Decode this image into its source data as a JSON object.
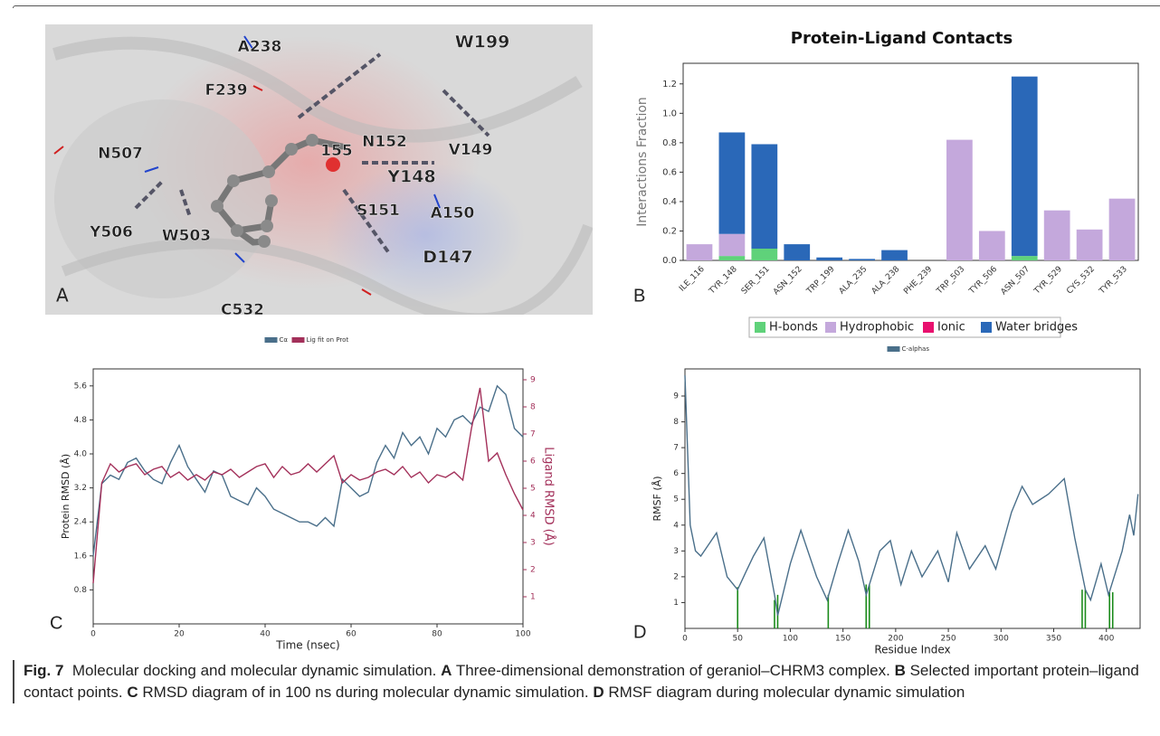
{
  "panel_a": {
    "letter": "A",
    "labels": [
      "A238",
      "W199",
      "F239",
      "N507",
      "155",
      "N152",
      "V149",
      "Y148",
      "S151",
      "A150",
      "Y506",
      "W503",
      "D147",
      "C532"
    ]
  },
  "chart_data": [
    {
      "type": "bar",
      "panel": "B",
      "title": "Protein-Ligand Contacts",
      "y_label": "Interactions Fraction",
      "categories": [
        "ILE_116",
        "TYR_148",
        "SER_151",
        "ASN_152",
        "TRP_199",
        "ALA_235",
        "ALA_238",
        "PHE_239",
        "TRP_503",
        "TYR_506",
        "ASN_507",
        "TYR_529",
        "CYS_532",
        "TYR_533"
      ],
      "series": [
        {
          "name": "H-bonds",
          "color": "#5fd27a",
          "values": [
            0,
            0.03,
            0.08,
            0,
            0,
            0,
            0,
            0,
            0,
            0,
            0.03,
            0,
            0,
            0
          ]
        },
        {
          "name": "Hydrophobic",
          "color": "#c4a8dc",
          "values": [
            0.11,
            0.15,
            0,
            0,
            0,
            0,
            0,
            0,
            0.82,
            0.2,
            0,
            0.34,
            0.21,
            0.42
          ]
        },
        {
          "name": "Ionic",
          "color": "#e8106e",
          "values": [
            0,
            0,
            0,
            0,
            0,
            0,
            0,
            0,
            0,
            0,
            0,
            0,
            0,
            0
          ]
        },
        {
          "name": "Water bridges",
          "color": "#2a68b8",
          "values": [
            0,
            0.69,
            0.71,
            0.11,
            0.02,
            0.01,
            0.07,
            0,
            0,
            0,
            1.22,
            0,
            0,
            0
          ]
        }
      ],
      "ylim": [
        0,
        1.34
      ],
      "yticks": [
        {
          "value": 0,
          "label": "0.0"
        },
        0.2,
        0.4,
        0.6,
        0.8,
        {
          "value": 1,
          "label": "1.0"
        },
        1.2
      ],
      "legend": "below"
    },
    {
      "type": "line",
      "panel": "C",
      "x_label": "Time (nsec)",
      "y_label": "Protein RMSD (Å)",
      "y2_label": "Ligand RMSD (Å)",
      "x": [
        0,
        2,
        4,
        6,
        8,
        10,
        12,
        14,
        16,
        18,
        20,
        22,
        24,
        26,
        28,
        30,
        32,
        34,
        36,
        38,
        40,
        42,
        44,
        46,
        48,
        50,
        52,
        54,
        56,
        58,
        60,
        62,
        64,
        66,
        68,
        70,
        72,
        74,
        76,
        78,
        80,
        82,
        84,
        86,
        88,
        90,
        92,
        94,
        96,
        98,
        100
      ],
      "series": [
        {
          "name": "Cα",
          "color": "#4a6f8a",
          "values": [
            1.6,
            3.3,
            3.5,
            3.4,
            3.8,
            3.9,
            3.6,
            3.4,
            3.3,
            3.8,
            4.2,
            3.7,
            3.4,
            3.1,
            3.6,
            3.5,
            3.0,
            2.9,
            2.8,
            3.2,
            3.0,
            2.7,
            2.6,
            2.5,
            2.4,
            2.4,
            2.3,
            2.5,
            2.3,
            3.4,
            3.2,
            3.0,
            3.1,
            3.8,
            4.2,
            3.9,
            4.5,
            4.2,
            4.4,
            4.0,
            4.6,
            4.4,
            4.8,
            4.9,
            4.7,
            5.1,
            5.0,
            5.6,
            5.4,
            4.6,
            4.4
          ]
        },
        {
          "name": "Lig fit on Prot",
          "color": "#a3305a",
          "axis": "y2",
          "values": [
            1.5,
            5.2,
            5.9,
            5.6,
            5.8,
            5.9,
            5.5,
            5.7,
            5.8,
            5.4,
            5.6,
            5.3,
            5.5,
            5.3,
            5.6,
            5.5,
            5.7,
            5.4,
            5.6,
            5.8,
            5.9,
            5.4,
            5.8,
            5.5,
            5.6,
            5.9,
            5.6,
            5.9,
            6.2,
            5.2,
            5.5,
            5.3,
            5.4,
            5.6,
            5.7,
            5.5,
            5.8,
            5.4,
            5.6,
            5.2,
            5.5,
            5.4,
            5.6,
            5.3,
            7.2,
            8.7,
            6.0,
            6.3,
            5.5,
            4.8,
            4.2
          ]
        }
      ],
      "xlim": [
        0,
        100
      ],
      "xticks": [
        0,
        20,
        40,
        60,
        80,
        100
      ],
      "ylim": [
        0,
        6.0
      ],
      "yticks": [
        0.8,
        1.6,
        2.4,
        3.2,
        {
          "value": 4,
          "label": "4.0"
        },
        4.8,
        5.6
      ],
      "y2lim": [
        0,
        9.4
      ],
      "y2ticks": [
        1,
        2,
        3,
        4,
        5,
        6,
        7,
        8,
        9
      ],
      "legend": "top"
    },
    {
      "type": "line",
      "panel": "D",
      "x_label": "Residue Index",
      "y_label": "RMSF (Å)",
      "x": [
        0,
        5,
        10,
        15,
        20,
        30,
        40,
        50,
        58,
        65,
        75,
        85,
        88,
        100,
        110,
        125,
        135,
        145,
        155,
        165,
        172,
        185,
        195,
        205,
        215,
        225,
        240,
        250,
        258,
        270,
        285,
        295,
        310,
        320,
        330,
        345,
        360,
        370,
        380,
        385,
        395,
        402,
        415,
        422,
        426,
        430
      ],
      "series": [
        {
          "name": "C-alphas",
          "color": "#4a6f8a",
          "values": [
            9.8,
            4.0,
            3.0,
            2.8,
            3.1,
            3.7,
            2.0,
            1.5,
            2.2,
            2.8,
            3.5,
            1.3,
            0.5,
            2.5,
            3.8,
            2.0,
            1.1,
            2.5,
            3.8,
            2.6,
            1.3,
            3.0,
            3.4,
            1.7,
            3.0,
            2.0,
            3.0,
            1.8,
            3.7,
            2.3,
            3.2,
            2.3,
            4.5,
            5.5,
            4.8,
            5.2,
            5.8,
            3.5,
            1.5,
            1.1,
            2.5,
            1.3,
            3.0,
            4.4,
            3.6,
            5.2
          ]
        }
      ],
      "contacts": {
        "color": "#1a8a1a",
        "x": [
          50,
          85,
          88,
          136,
          172,
          175,
          377,
          380,
          403,
          406
        ],
        "values": [
          1.6,
          1.1,
          1.3,
          1.3,
          1.7,
          1.7,
          1.5,
          1.5,
          1.4,
          1.4
        ]
      },
      "xlim": [
        0,
        432
      ],
      "xticks": [
        0,
        50,
        100,
        150,
        200,
        250,
        300,
        350,
        400
      ],
      "ylim": [
        0,
        10.05
      ],
      "yticks": [
        1,
        2,
        3,
        4,
        5,
        6,
        7,
        8,
        9
      ],
      "legend": "top"
    }
  ],
  "caption": {
    "figure": "Fig. 7",
    "title": "Molecular docking and molecular dynamic simulation.",
    "parts": [
      {
        "label": "A",
        "text": "Three-dimensional demonstration of geraniol–CHRM3 complex."
      },
      {
        "label": "B",
        "text": "Selected important protein–ligand contact points."
      },
      {
        "label": "C",
        "text": "RMSD diagram of in 100 ns during molecular dynamic simulation."
      },
      {
        "label": "D",
        "text": "RMSF diagram during molecular dynamic simulation"
      }
    ]
  }
}
